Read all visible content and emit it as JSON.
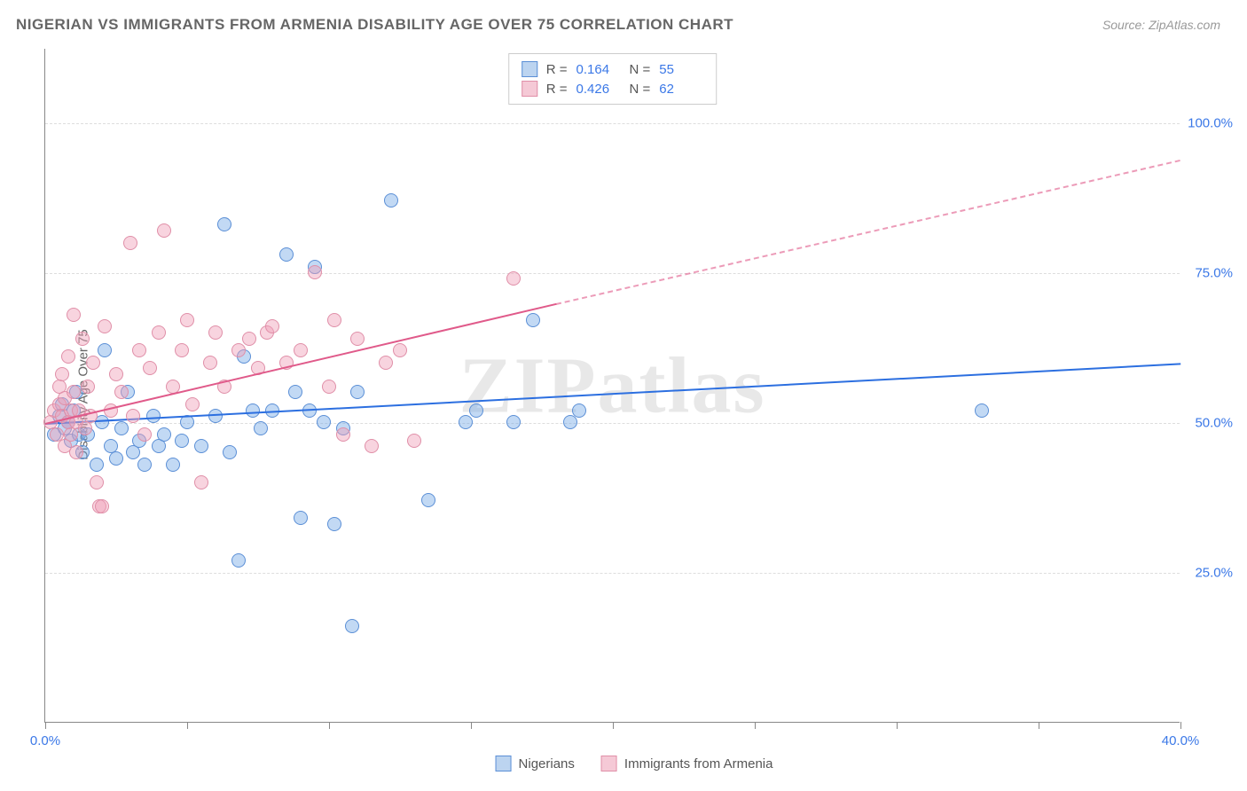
{
  "header": {
    "title": "NIGERIAN VS IMMIGRANTS FROM ARMENIA DISABILITY AGE OVER 75 CORRELATION CHART",
    "source": "Source: ZipAtlas.com"
  },
  "chart": {
    "type": "scatter",
    "ylabel": "Disability Age Over 75",
    "watermark": "ZIPatlas",
    "xlim": [
      0,
      40
    ],
    "ylim": [
      0,
      112.5
    ],
    "xticks": [
      0,
      5,
      10,
      15,
      20,
      25,
      30,
      35,
      40
    ],
    "xtick_labels_shown": {
      "0": "0.0%",
      "40": "40.0%"
    },
    "yticks": [
      25,
      50,
      75,
      100
    ],
    "ytick_labels": [
      "25.0%",
      "50.0%",
      "75.0%",
      "100.0%"
    ],
    "background_color": "#ffffff",
    "grid_color": "#dddddd",
    "axis_color": "#888888",
    "tick_label_color": "#3b78e7",
    "marker_radius": 8,
    "series": [
      {
        "name": "Nigerians",
        "fill": "rgba(120,170,230,0.45)",
        "stroke": "#5b8fd6",
        "swatch_fill": "#bcd4f0",
        "swatch_stroke": "#5b8fd6",
        "R": "0.164",
        "N": "55",
        "trend": {
          "x1": 0,
          "y1": 50,
          "x2": 40,
          "y2": 60,
          "solid_color": "#2c6fe0",
          "dash_after_x": 40
        },
        "points": [
          [
            0.3,
            48
          ],
          [
            0.5,
            51
          ],
          [
            0.6,
            53
          ],
          [
            0.7,
            49
          ],
          [
            0.8,
            50
          ],
          [
            0.9,
            47
          ],
          [
            1.0,
            52
          ],
          [
            1.1,
            55
          ],
          [
            1.2,
            48
          ],
          [
            1.3,
            45
          ],
          [
            1.5,
            48
          ],
          [
            1.8,
            43
          ],
          [
            2.0,
            50
          ],
          [
            2.1,
            62
          ],
          [
            2.3,
            46
          ],
          [
            2.5,
            44
          ],
          [
            2.7,
            49
          ],
          [
            2.9,
            55
          ],
          [
            3.1,
            45
          ],
          [
            3.3,
            47
          ],
          [
            3.5,
            43
          ],
          [
            3.8,
            51
          ],
          [
            4.0,
            46
          ],
          [
            4.2,
            48
          ],
          [
            4.5,
            43
          ],
          [
            4.8,
            47
          ],
          [
            5.0,
            50
          ],
          [
            5.5,
            46
          ],
          [
            6.0,
            51
          ],
          [
            6.3,
            83
          ],
          [
            6.5,
            45
          ],
          [
            6.8,
            27
          ],
          [
            7.0,
            61
          ],
          [
            7.3,
            52
          ],
          [
            7.6,
            49
          ],
          [
            8.0,
            52
          ],
          [
            8.5,
            78
          ],
          [
            8.8,
            55
          ],
          [
            9.0,
            34
          ],
          [
            9.3,
            52
          ],
          [
            9.5,
            76
          ],
          [
            9.8,
            50
          ],
          [
            10.2,
            33
          ],
          [
            10.5,
            49
          ],
          [
            10.8,
            16
          ],
          [
            11.0,
            55
          ],
          [
            12.2,
            87
          ],
          [
            13.5,
            37
          ],
          [
            14.8,
            50
          ],
          [
            15.2,
            52
          ],
          [
            16.5,
            50
          ],
          [
            17.2,
            67
          ],
          [
            18.5,
            50
          ],
          [
            18.8,
            52
          ],
          [
            33.0,
            52
          ]
        ]
      },
      {
        "name": "Immigrants from Armenia",
        "fill": "rgba(240,160,185,0.45)",
        "stroke": "#e08fa8",
        "swatch_fill": "#f5c9d6",
        "swatch_stroke": "#e08fa8",
        "R": "0.426",
        "N": "62",
        "trend": {
          "x1": 0,
          "y1": 50,
          "x2": 18,
          "y2": 70,
          "solid_color": "#e05a8a",
          "dash_after_x": 18,
          "dash_x2": 40,
          "dash_y2": 94
        },
        "points": [
          [
            0.2,
            50
          ],
          [
            0.3,
            52
          ],
          [
            0.4,
            48
          ],
          [
            0.5,
            53
          ],
          [
            0.5,
            56
          ],
          [
            0.6,
            51
          ],
          [
            0.6,
            58
          ],
          [
            0.7,
            46
          ],
          [
            0.7,
            54
          ],
          [
            0.8,
            50
          ],
          [
            0.8,
            61
          ],
          [
            0.9,
            52
          ],
          [
            0.9,
            48
          ],
          [
            1.0,
            55
          ],
          [
            1.0,
            68
          ],
          [
            1.1,
            50
          ],
          [
            1.1,
            45
          ],
          [
            1.2,
            52
          ],
          [
            1.3,
            64
          ],
          [
            1.4,
            49
          ],
          [
            1.5,
            56
          ],
          [
            1.6,
            51
          ],
          [
            1.7,
            60
          ],
          [
            1.8,
            40
          ],
          [
            1.9,
            36
          ],
          [
            2.0,
            36
          ],
          [
            2.1,
            66
          ],
          [
            2.3,
            52
          ],
          [
            2.5,
            58
          ],
          [
            2.7,
            55
          ],
          [
            3.0,
            80
          ],
          [
            3.1,
            51
          ],
          [
            3.3,
            62
          ],
          [
            3.5,
            48
          ],
          [
            3.7,
            59
          ],
          [
            4.0,
            65
          ],
          [
            4.2,
            82
          ],
          [
            4.5,
            56
          ],
          [
            4.8,
            62
          ],
          [
            5.0,
            67
          ],
          [
            5.2,
            53
          ],
          [
            5.5,
            40
          ],
          [
            5.8,
            60
          ],
          [
            6.0,
            65
          ],
          [
            6.3,
            56
          ],
          [
            6.8,
            62
          ],
          [
            7.2,
            64
          ],
          [
            7.5,
            59
          ],
          [
            7.8,
            65
          ],
          [
            8.0,
            66
          ],
          [
            8.5,
            60
          ],
          [
            9.0,
            62
          ],
          [
            9.5,
            75
          ],
          [
            10.0,
            56
          ],
          [
            10.2,
            67
          ],
          [
            10.5,
            48
          ],
          [
            11.0,
            64
          ],
          [
            11.5,
            46
          ],
          [
            12.0,
            60
          ],
          [
            12.5,
            62
          ],
          [
            13.0,
            47
          ],
          [
            16.5,
            74
          ]
        ]
      }
    ]
  },
  "legend_bottom": [
    {
      "label": "Nigerians",
      "swatch_fill": "#bcd4f0",
      "swatch_stroke": "#5b8fd6"
    },
    {
      "label": "Immigrants from Armenia",
      "swatch_fill": "#f5c9d6",
      "swatch_stroke": "#e08fa8"
    }
  ]
}
